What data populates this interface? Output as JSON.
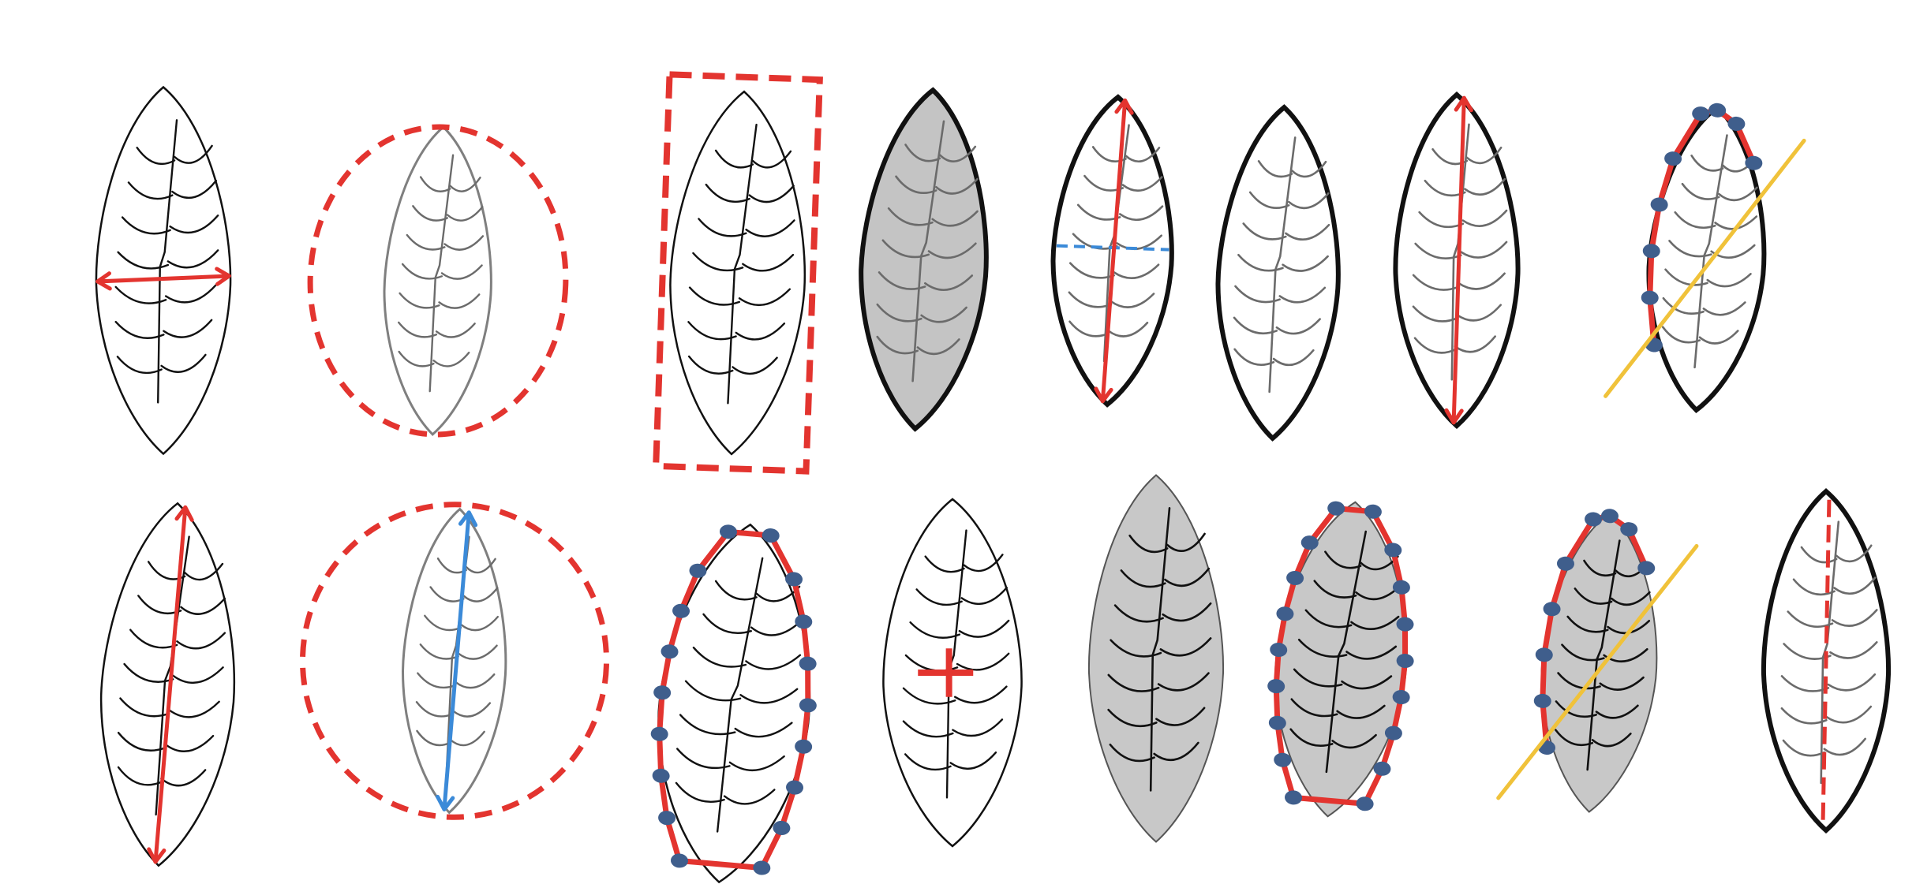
{
  "colors": {
    "outline": "#111111",
    "outline_light": "#7f7f7f",
    "vein_dark": "#111111",
    "vein_gray": "#6b6b6b",
    "fill_gray": "#c4c4c4",
    "fill_gray_light": "#c8c8c8",
    "red": "#e3342f",
    "blue": "#3b8ad8",
    "dot_blue": "#3f5e8c",
    "yellow": "#f0c23a"
  },
  "figure": {
    "rows": [
      {
        "row": "top",
        "leaves": [
          {
            "id": "t1",
            "style": "thin-outline",
            "annotation": "width-arrow"
          },
          {
            "id": "t2",
            "style": "gray-outline",
            "annotation": "dashed-circle"
          },
          {
            "id": "t3",
            "style": "thin-outline",
            "annotation": "dashed-rectangle"
          },
          {
            "id": "t4",
            "style": "gray-filled-bold",
            "annotation": "none"
          },
          {
            "id": "t5",
            "style": "bold-outline",
            "annotation": "length-arrow-and-dashed-width"
          },
          {
            "id": "t6",
            "style": "bold-outline",
            "annotation": "none"
          },
          {
            "id": "t7",
            "style": "bold-outline",
            "annotation": "length-arrow"
          },
          {
            "id": "t8",
            "style": "bold-outline",
            "annotation": "landmarks-with-diagonal-line"
          }
        ]
      },
      {
        "row": "bottom",
        "leaves": [
          {
            "id": "b1",
            "style": "thin-outline",
            "annotation": "length-arrow"
          },
          {
            "id": "b2",
            "style": "gray-outline",
            "annotation": "dashed-circle-with-blue-arrow"
          },
          {
            "id": "b3",
            "style": "thin-outline",
            "annotation": "landmark-perimeter"
          },
          {
            "id": "b4",
            "style": "thin-outline",
            "annotation": "center-cross"
          },
          {
            "id": "b5",
            "style": "gray-filled",
            "annotation": "none"
          },
          {
            "id": "b6",
            "style": "gray-filled",
            "annotation": "landmark-perimeter"
          },
          {
            "id": "b7",
            "style": "gray-filled",
            "annotation": "landmarks-with-diagonal-line"
          },
          {
            "id": "b8",
            "style": "bold-outline",
            "annotation": "dashed-midrib"
          }
        ]
      }
    ]
  }
}
